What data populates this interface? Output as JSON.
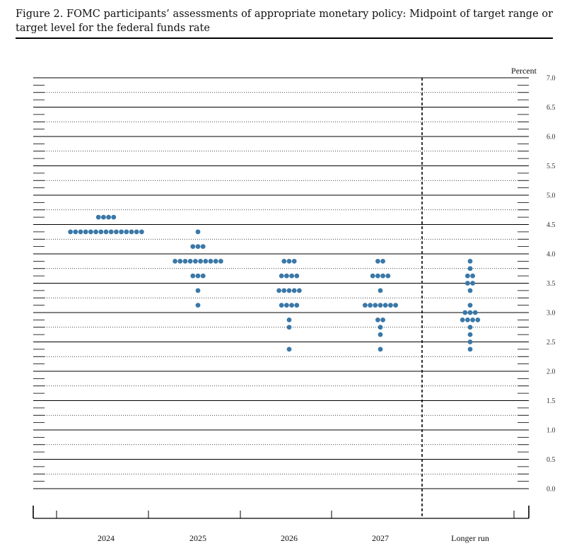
{
  "figure": {
    "caption": "Figure 2.  FOMC participants’ assessments of appropriate monetary policy:  Midpoint of target range or target level for the federal funds rate"
  },
  "colors": {
    "dot": "#3a78a8",
    "line": "#000000"
  },
  "chart_data": {
    "type": "scatter",
    "style": "dot-plot",
    "title": "",
    "xlabel": "",
    "ylabel": "Percent",
    "ylim": [
      0,
      7
    ],
    "ytick_step": 0.5,
    "ytick_labels": [
      "0.0",
      "0.5",
      "1.0",
      "1.5",
      "2.0",
      "2.5",
      "3.0",
      "3.5",
      "4.0",
      "4.5",
      "5.0",
      "5.5",
      "6.0",
      "6.5",
      "7.0"
    ],
    "grid": "solid at whole and half percentages, dotted at intermediate quarter levels",
    "categories": [
      "2024",
      "2025",
      "2026",
      "2027",
      "Longer run"
    ],
    "divider_before": "Longer run",
    "series": [
      {
        "category": "2024",
        "rate": [
          4.625,
          4.375
        ],
        "count": [
          4,
          15
        ]
      },
      {
        "category": "2025",
        "rate": [
          4.375,
          4.125,
          3.875,
          3.625,
          3.375,
          3.125
        ],
        "count": [
          1,
          3,
          10,
          3,
          1,
          1
        ]
      },
      {
        "category": "2026",
        "rate": [
          3.875,
          3.625,
          3.375,
          3.125,
          2.875,
          2.75,
          2.375
        ],
        "count": [
          3,
          4,
          5,
          4,
          1,
          1,
          1
        ]
      },
      {
        "category": "2027",
        "rate": [
          3.875,
          3.625,
          3.375,
          3.125,
          2.875,
          2.75,
          2.625,
          2.375
        ],
        "count": [
          2,
          4,
          1,
          7,
          2,
          1,
          1,
          1
        ]
      },
      {
        "category": "Longer run",
        "rate": [
          3.875,
          3.75,
          3.625,
          3.5,
          3.375,
          3.125,
          3.0,
          2.875,
          2.75,
          2.625,
          2.5,
          2.375
        ],
        "count": [
          1,
          1,
          2,
          2,
          1,
          1,
          3,
          4,
          1,
          1,
          1,
          1
        ]
      }
    ]
  }
}
